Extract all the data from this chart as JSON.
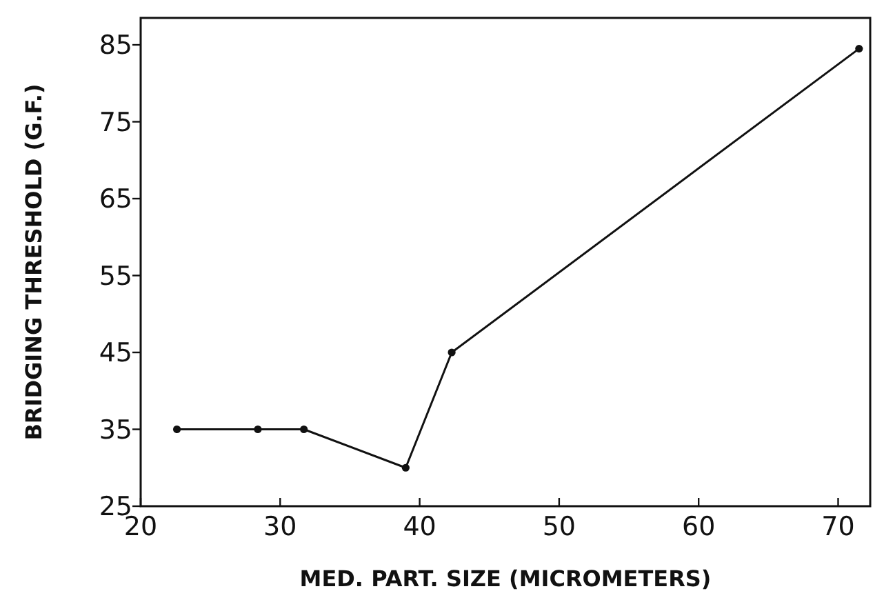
{
  "chart_data": {
    "type": "line",
    "xlabel": "MED. PART. SIZE (MICROMETERS)",
    "ylabel": "BRIDGING THRESHOLD (G.F.)",
    "x": [
      22.6,
      28.4,
      31.7,
      39.0,
      42.3,
      71.5
    ],
    "series": [
      {
        "color": "#111111",
        "values": [
          35,
          35,
          35,
          30,
          45,
          84.5
        ]
      }
    ],
    "xlim": [
      20,
      72.3
    ],
    "ylim": [
      25,
      88.5
    ],
    "xticks": [
      20,
      30,
      40,
      50,
      60,
      70
    ],
    "yticks": [
      25,
      35,
      45,
      55,
      65,
      75,
      85
    ],
    "marker": "circle",
    "line_style": "solid",
    "grid": false
  }
}
